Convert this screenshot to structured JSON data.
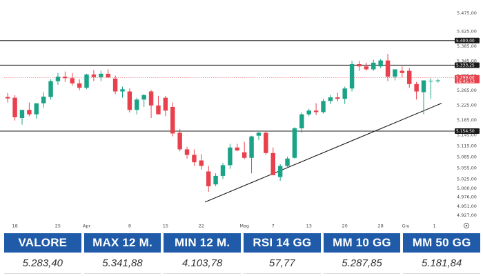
{
  "chart_data": {
    "type": "candlestick",
    "y_ticks": [
      "5.475,00",
      "5.425,00",
      "5.385,00",
      "5.345,00",
      "5.305,00",
      "5.265,00",
      "5.225,00",
      "5.185,00",
      "5.145,00",
      "5.115,00",
      "5.085,00",
      "5.055,00",
      "5.025,00",
      "5.000,00",
      "4.976,00",
      "4.951,00",
      "4.927,00"
    ],
    "y_tick_values": [
      5475,
      5425,
      5385,
      5345,
      5305,
      5265,
      5225,
      5185,
      5145,
      5115,
      5085,
      5055,
      5025,
      5000,
      4976,
      4951,
      4927
    ],
    "ylim": [
      4915,
      5495
    ],
    "x_ticks": [
      "18",
      "25",
      "Apr",
      "8",
      "15",
      "22",
      "Mag",
      "7",
      "13",
      "20",
      "28",
      "Giu",
      "1"
    ],
    "x_tick_slots": [
      1.5,
      7.5,
      11.5,
      17.5,
      22.5,
      27.5,
      33.5,
      37.5,
      42.5,
      47.5,
      52.5,
      56,
      60
    ],
    "x_slots": 61,
    "candles": [
      {
        "o": 5247,
        "h": 5258,
        "l": 5232,
        "c": 5243
      },
      {
        "o": 5245,
        "h": 5252,
        "l": 5183,
        "c": 5192
      },
      {
        "o": 5190,
        "h": 5210,
        "l": 5172,
        "c": 5212
      },
      {
        "o": 5212,
        "h": 5232,
        "l": 5195,
        "c": 5200
      },
      {
        "o": 5200,
        "h": 5230,
        "l": 5188,
        "c": 5230
      },
      {
        "o": 5230,
        "h": 5260,
        "l": 5218,
        "c": 5248
      },
      {
        "o": 5247,
        "h": 5295,
        "l": 5240,
        "c": 5290
      },
      {
        "o": 5290,
        "h": 5312,
        "l": 5280,
        "c": 5302
      },
      {
        "o": 5302,
        "h": 5316,
        "l": 5288,
        "c": 5298
      },
      {
        "o": 5298,
        "h": 5312,
        "l": 5278,
        "c": 5284
      },
      {
        "o": 5284,
        "h": 5295,
        "l": 5265,
        "c": 5272
      },
      {
        "o": 5272,
        "h": 5310,
        "l": 5268,
        "c": 5308
      },
      {
        "o": 5308,
        "h": 5320,
        "l": 5290,
        "c": 5301
      },
      {
        "o": 5301,
        "h": 5318,
        "l": 5290,
        "c": 5310
      },
      {
        "o": 5310,
        "h": 5322,
        "l": 5300,
        "c": 5300
      },
      {
        "o": 5297,
        "h": 5305,
        "l": 5255,
        "c": 5262
      },
      {
        "o": 5262,
        "h": 5275,
        "l": 5245,
        "c": 5268
      },
      {
        "o": 5262,
        "h": 5270,
        "l": 5205,
        "c": 5212
      },
      {
        "o": 5212,
        "h": 5245,
        "l": 5200,
        "c": 5240
      },
      {
        "o": 5240,
        "h": 5255,
        "l": 5220,
        "c": 5252
      },
      {
        "o": 5262,
        "h": 5266,
        "l": 5190,
        "c": 5224
      },
      {
        "o": 5224,
        "h": 5250,
        "l": 5200,
        "c": 5200
      },
      {
        "o": 5245,
        "h": 5250,
        "l": 5195,
        "c": 5210
      },
      {
        "o": 5220,
        "h": 5232,
        "l": 5140,
        "c": 5148
      },
      {
        "o": 5150,
        "h": 5160,
        "l": 5100,
        "c": 5105
      },
      {
        "o": 5105,
        "h": 5112,
        "l": 5080,
        "c": 5090
      },
      {
        "o": 5090,
        "h": 5105,
        "l": 5060,
        "c": 5070
      },
      {
        "o": 5075,
        "h": 5092,
        "l": 5050,
        "c": 5060
      },
      {
        "o": 5045,
        "h": 5060,
        "l": 4990,
        "c": 5005
      },
      {
        "o": 5010,
        "h": 5040,
        "l": 5005,
        "c": 5033
      },
      {
        "o": 5033,
        "h": 5068,
        "l": 5025,
        "c": 5062
      },
      {
        "o": 5062,
        "h": 5120,
        "l": 5052,
        "c": 5110
      },
      {
        "o": 5110,
        "h": 5120,
        "l": 5100,
        "c": 5102
      },
      {
        "o": 5097,
        "h": 5125,
        "l": 5078,
        "c": 5082
      },
      {
        "o": 5082,
        "h": 5142,
        "l": 5040,
        "c": 5140
      },
      {
        "o": 5142,
        "h": 5152,
        "l": 5130,
        "c": 5150
      },
      {
        "o": 5150,
        "h": 5155,
        "l": 5090,
        "c": 5095
      },
      {
        "o": 5095,
        "h": 5110,
        "l": 5040,
        "c": 5035
      },
      {
        "o": 5030,
        "h": 5065,
        "l": 5020,
        "c": 5060
      },
      {
        "o": 5060,
        "h": 5085,
        "l": 5055,
        "c": 5080
      },
      {
        "o": 5082,
        "h": 5165,
        "l": 5080,
        "c": 5162
      },
      {
        "o": 5162,
        "h": 5205,
        "l": 5150,
        "c": 5200
      },
      {
        "o": 5200,
        "h": 5215,
        "l": 5195,
        "c": 5210
      },
      {
        "o": 5210,
        "h": 5230,
        "l": 5198,
        "c": 5206
      },
      {
        "o": 5206,
        "h": 5242,
        "l": 5202,
        "c": 5236
      },
      {
        "o": 5236,
        "h": 5252,
        "l": 5228,
        "c": 5246
      },
      {
        "o": 5246,
        "h": 5258,
        "l": 5235,
        "c": 5242
      },
      {
        "o": 5242,
        "h": 5275,
        "l": 5228,
        "c": 5270
      },
      {
        "o": 5270,
        "h": 5345,
        "l": 5262,
        "c": 5336
      },
      {
        "o": 5336,
        "h": 5345,
        "l": 5318,
        "c": 5330
      },
      {
        "o": 5330,
        "h": 5340,
        "l": 5318,
        "c": 5322
      },
      {
        "o": 5322,
        "h": 5348,
        "l": 5318,
        "c": 5340
      },
      {
        "o": 5330,
        "h": 5350,
        "l": 5325,
        "c": 5346
      },
      {
        "o": 5346,
        "h": 5364,
        "l": 5290,
        "c": 5302
      },
      {
        "o": 5302,
        "h": 5322,
        "l": 5292,
        "c": 5322
      },
      {
        "o": 5318,
        "h": 5330,
        "l": 5300,
        "c": 5312
      },
      {
        "o": 5318,
        "h": 5325,
        "l": 5272,
        "c": 5282
      },
      {
        "o": 5282,
        "h": 5288,
        "l": 5240,
        "c": 5262
      },
      {
        "o": 5260,
        "h": 5292,
        "l": 5200,
        "c": 5292
      },
      {
        "o": 5290,
        "h": 5298,
        "l": 5242,
        "c": 5291
      },
      {
        "o": 5290,
        "h": 5296,
        "l": 5286,
        "c": 5292
      }
    ],
    "horizontal_levels": [
      {
        "label": "5.400,00",
        "value": 5400,
        "tag_bg": "#1a1a1a",
        "tag_fg": "#ffffff",
        "line_color": "#1a1a1a"
      },
      {
        "label": "5.333,25",
        "value": 5333.25,
        "tag_bg": "#1a1a1a",
        "tag_fg": "#ffffff",
        "line_color": "#1a1a1a"
      },
      {
        "label": "5.154,50",
        "value": 5154.5,
        "tag_bg": "#1a1a1a",
        "tag_fg": "#ffffff",
        "line_color": "#1a1a1a"
      }
    ],
    "price_tag": {
      "label": "5.299,00",
      "sub_label": "16:45:53",
      "value": 5299,
      "bg": "#e8404c",
      "fg": "#ffffff"
    },
    "trendline": {
      "from": {
        "slot": 28,
        "value": 4962
      },
      "to": {
        "slot": 61,
        "value": 5230
      },
      "color": "#1a1a1a"
    },
    "colors": {
      "up": "#1aa386",
      "down": "#e8404c",
      "axis_text": "#4a4a4a"
    }
  },
  "stats": [
    {
      "label": "VALORE",
      "value": "5.283,40"
    },
    {
      "label": "MAX 12 M.",
      "value": "5.341,88"
    },
    {
      "label": "MIN 12 M.",
      "value": "4.103,78"
    },
    {
      "label": "RSI 14 GG",
      "value": "57,77"
    },
    {
      "label": "MM 10 GG",
      "value": "5.287,85"
    },
    {
      "label": "MM 50 GG",
      "value": "5.181,84"
    }
  ],
  "x_axis_settings_icon": "gear-icon",
  "accent_color": "#1f5ba8"
}
